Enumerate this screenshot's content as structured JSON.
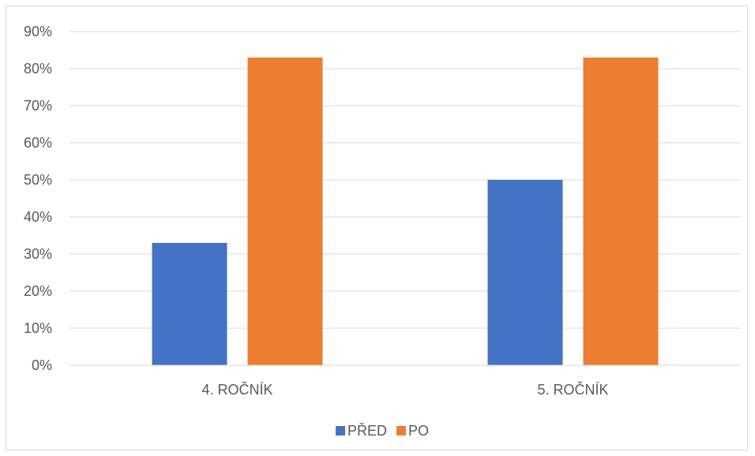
{
  "chart_data": {
    "type": "bar",
    "title": "",
    "xlabel": "",
    "ylabel": "",
    "categories": [
      "4. ROČNÍK",
      "5. ROČNÍK"
    ],
    "series": [
      {
        "name": "PŘED",
        "values": [
          0.33,
          0.5
        ],
        "color": "#4472C4"
      },
      {
        "name": "PO",
        "values": [
          0.83,
          0.83
        ],
        "color": "#ED7D31"
      }
    ],
    "ylim": [
      0,
      0.9
    ],
    "y_ticks": [
      "0%",
      "10%",
      "20%",
      "30%",
      "40%",
      "50%",
      "60%",
      "70%",
      "80%",
      "90%"
    ],
    "grid": true,
    "legend_position": "bottom"
  }
}
